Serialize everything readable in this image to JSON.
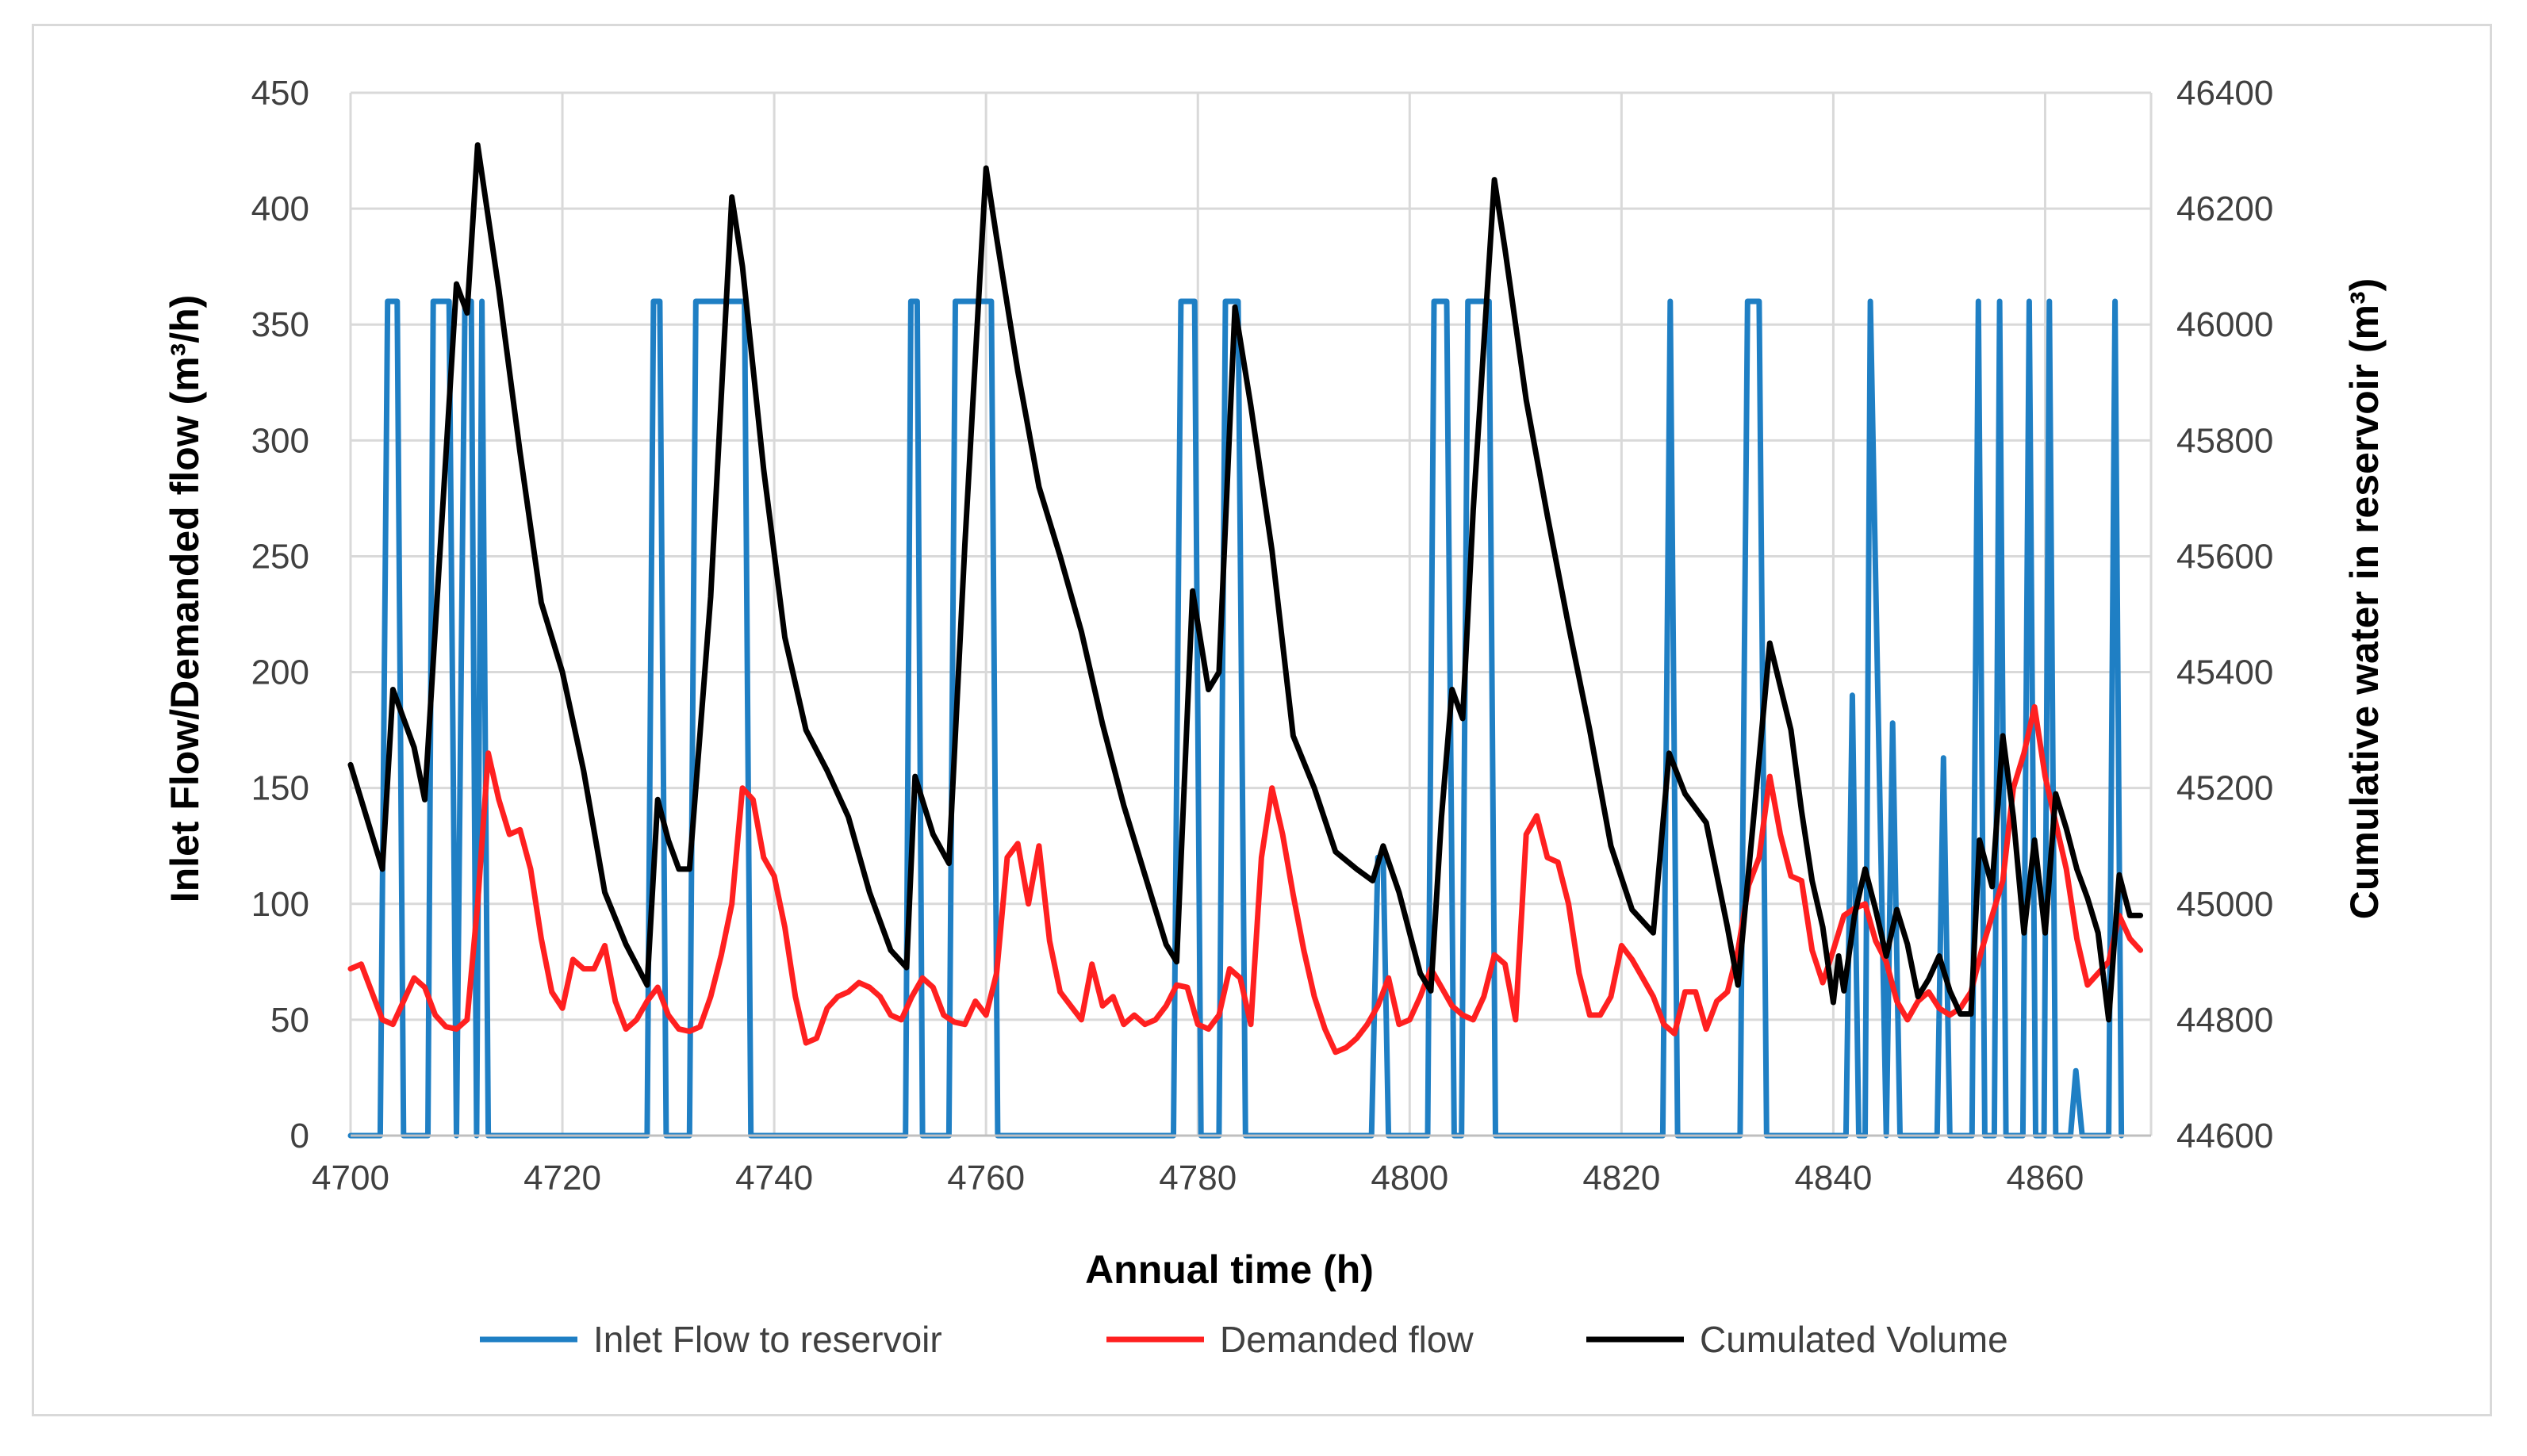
{
  "chart_data": {
    "type": "line",
    "title": "",
    "xlabel": "Annual time (h)",
    "ylabel_left": "Inlet Flow/Demanded flow (m³/h)",
    "ylabel_right": "Cumulative water in    reservoir (m³)",
    "xlim": [
      4700,
      4870
    ],
    "ylim_left": [
      0,
      450
    ],
    "ylim_right": [
      44600,
      46400
    ],
    "x_ticks": [
      "4700",
      "4720",
      "4740",
      "4760",
      "4780",
      "4800",
      "4820",
      "4840",
      "4860"
    ],
    "y_left_ticks": [
      "0",
      "50",
      "100",
      "150",
      "200",
      "250",
      "300",
      "350",
      "400",
      "450"
    ],
    "y_right_ticks": [
      "44600",
      "44800",
      "45000",
      "45200",
      "45400",
      "45600",
      "45800",
      "46000",
      "46200",
      "46400"
    ],
    "grid": true,
    "legend_position": "bottom",
    "series": [
      {
        "name": "Inlet Flow to reservoir",
        "axis": "left",
        "color": "#1f7fc4",
        "x": [
          4700,
          4702.8,
          4703.5,
          4704.4,
          4705,
          4707.3,
          4707.8,
          4709.3,
          4710,
          4710.8,
          4711.4,
          4711.9,
          4712.4,
          4713,
          4728,
          4728.6,
          4729.2,
          4729.8,
          4732,
          4732.6,
          4733.3,
          4736.5,
          4737.2,
          4737.8,
          4752.4,
          4752.9,
          4753.5,
          4754,
          4756.5,
          4757.1,
          4759.8,
          4760.5,
          4761.1,
          4777.7,
          4778.4,
          4779.7,
          4780.3,
          4782,
          4782.6,
          4783.8,
          4784.5,
          4796.4,
          4797,
          4797.5,
          4798,
          4801.7,
          4802.3,
          4803.5,
          4804.2,
          4804.9,
          4805.5,
          4806.2,
          4807.5,
          4808.1,
          4823.9,
          4824.6,
          4825.3,
          4831.2,
          4831.9,
          4833,
          4833.7,
          4841.2,
          4841.8,
          4842.4,
          4843,
          4843.5,
          4845,
          4845.6,
          4846.3,
          4849.8,
          4850.4,
          4851,
          4853.1,
          4853.7,
          4854.3,
          4855.2,
          4855.7,
          4856.3,
          4857.9,
          4858.5,
          4859.1,
          4859.9,
          4860.4,
          4861,
          4862.4,
          4862.9,
          4863.5,
          4866,
          4866.6,
          4867.2
        ],
        "values": [
          0,
          0,
          360,
          360,
          0,
          0,
          360,
          360,
          0,
          360,
          360,
          0,
          360,
          0,
          0,
          360,
          360,
          0,
          0,
          360,
          360,
          360,
          360,
          0,
          0,
          360,
          360,
          0,
          0,
          360,
          360,
          360,
          0,
          0,
          360,
          360,
          0,
          0,
          360,
          360,
          0,
          0,
          120,
          120,
          0,
          0,
          360,
          360,
          0,
          0,
          360,
          360,
          360,
          0,
          0,
          360,
          0,
          0,
          360,
          360,
          0,
          0,
          190,
          0,
          0,
          360,
          0,
          178,
          0,
          0,
          163,
          0,
          0,
          360,
          0,
          0,
          360,
          0,
          0,
          360,
          0,
          0,
          360,
          0,
          0,
          28,
          0,
          0,
          360,
          0
        ]
      },
      {
        "name": "Demanded flow",
        "axis": "left",
        "color": "#ff2020",
        "x": [
          4700,
          4701,
          4702,
          4703,
          4704,
          4705,
          4706,
          4707,
          4708,
          4709,
          4710,
          4711,
          4712,
          4713,
          4714,
          4715,
          4716,
          4717,
          4718,
          4719,
          4720,
          4721,
          4722,
          4723,
          4724,
          4725,
          4726,
          4727,
          4728,
          4729,
          4730,
          4731,
          4732,
          4733,
          4734,
          4735,
          4736,
          4737,
          4738,
          4739,
          4740,
          4741,
          4742,
          4743,
          4744,
          4745,
          4746,
          4747,
          4748,
          4749,
          4750,
          4751,
          4752,
          4753,
          4754,
          4755,
          4756,
          4757,
          4758,
          4759,
          4760,
          4761,
          4762,
          4763,
          4764,
          4765,
          4766,
          4767,
          4768,
          4769,
          4770,
          4771,
          4772,
          4773,
          4774,
          4775,
          4776,
          4777,
          4778,
          4779,
          4780,
          4781,
          4782,
          4783,
          4784,
          4785,
          4786,
          4787,
          4788,
          4789,
          4790,
          4791,
          4792,
          4793,
          4794,
          4795,
          4796,
          4797,
          4798,
          4799,
          4800,
          4801,
          4802,
          4803,
          4804,
          4805,
          4806,
          4807,
          4808,
          4809,
          4810,
          4811,
          4812,
          4813,
          4814,
          4815,
          4816,
          4817,
          4818,
          4819,
          4820,
          4821,
          4822,
          4823,
          4824,
          4825,
          4826,
          4827,
          4828,
          4829,
          4830,
          4831,
          4832,
          4833,
          4834,
          4835,
          4836,
          4837,
          4838,
          4839,
          4840,
          4841,
          4842,
          4843,
          4844,
          4845,
          4846,
          4847,
          4848,
          4849,
          4850,
          4851,
          4852,
          4853,
          4854,
          4855,
          4856,
          4857,
          4858,
          4859,
          4860,
          4861,
          4862,
          4863,
          4864,
          4865,
          4866,
          4867,
          4868,
          4869
        ],
        "values": [
          72,
          74,
          62,
          50,
          48,
          58,
          68,
          64,
          52,
          47,
          46,
          50,
          100,
          165,
          145,
          130,
          132,
          115,
          85,
          62,
          55,
          76,
          72,
          72,
          82,
          58,
          46,
          50,
          58,
          64,
          52,
          46,
          45,
          47,
          60,
          78,
          100,
          150,
          145,
          120,
          112,
          90,
          60,
          40,
          42,
          55,
          60,
          62,
          66,
          64,
          60,
          52,
          50,
          60,
          68,
          64,
          52,
          49,
          48,
          58,
          52,
          70,
          120,
          126,
          100,
          125,
          84,
          62,
          56,
          50,
          74,
          56,
          60,
          48,
          52,
          48,
          50,
          56,
          65,
          64,
          48,
          46,
          52,
          72,
          68,
          48,
          120,
          150,
          130,
          104,
          80,
          60,
          46,
          36,
          38,
          42,
          48,
          56,
          68,
          48,
          50,
          60,
          72,
          64,
          56,
          52,
          50,
          60,
          78,
          74,
          50,
          130,
          138,
          120,
          118,
          100,
          70,
          52,
          52,
          60,
          82,
          76,
          68,
          60,
          48,
          44,
          62,
          62,
          46,
          58,
          62,
          80,
          108,
          120,
          155,
          130,
          112,
          110,
          80,
          66,
          80,
          95,
          98,
          100,
          84,
          75,
          58,
          50,
          58,
          62,
          55,
          52,
          55,
          62,
          80,
          95,
          110,
          150,
          165,
          185,
          155,
          135,
          115,
          85,
          65,
          70,
          75,
          95,
          85,
          80
        ]
      },
      {
        "name": "Cumulated Volume",
        "axis": "right",
        "color": "#000000",
        "x": [
          4700,
          4703,
          4704,
          4706,
          4707,
          4710,
          4711,
          4712,
          4714,
          4716,
          4718,
          4720,
          4722,
          4724,
          4726,
          4728,
          4729,
          4730,
          4731,
          4732,
          4734,
          4736,
          4737,
          4739,
          4741,
          4743,
          4745,
          4747,
          4749,
          4751,
          4752.5,
          4753.3,
          4755,
          4756.5,
          4758,
          4760,
          4761,
          4763,
          4765,
          4767,
          4769,
          4771,
          4773,
          4775,
          4777,
          4778,
          4779.5,
          4781,
          4782,
          4783.5,
          4785,
          4787,
          4789,
          4791,
          4793,
          4795,
          4796.5,
          4797.5,
          4799,
          4801,
          4802,
          4803,
          4804,
          4805,
          4806,
          4808,
          4809,
          4811,
          4813,
          4815,
          4817,
          4819,
          4821,
          4823,
          4824.5,
          4826,
          4828,
          4830,
          4831,
          4833,
          4834,
          4836,
          4837,
          4838,
          4839,
          4840,
          4840.5,
          4841,
          4842,
          4843,
          4844,
          4845,
          4846,
          4847,
          4848,
          4849,
          4850,
          4851,
          4852,
          4853,
          4853.8,
          4855,
          4856,
          4857,
          4858,
          4859,
          4860,
          4861,
          4862,
          4863,
          4864,
          4865,
          4866,
          4867,
          4868,
          4869
        ],
        "values": [
          45240,
          45060,
          45370,
          45270,
          45180,
          46070,
          46020,
          46310,
          46060,
          45780,
          45520,
          45400,
          45230,
          45020,
          44930,
          44860,
          45180,
          45110,
          45060,
          45060,
          45530,
          46220,
          46100,
          45750,
          45460,
          45300,
          45230,
          45150,
          45020,
          44920,
          44890,
          45220,
          45120,
          45070,
          45620,
          46270,
          46150,
          45920,
          45720,
          45600,
          45470,
          45310,
          45170,
          45050,
          44930,
          44900,
          45540,
          45370,
          45400,
          46030,
          45860,
          45610,
          45290,
          45200,
          45090,
          45060,
          45040,
          45100,
          45020,
          44880,
          44850,
          45150,
          45370,
          45320,
          45680,
          46250,
          46130,
          45870,
          45670,
          45480,
          45300,
          45100,
          44990,
          44950,
          45260,
          45190,
          45140,
          44960,
          44860,
          45250,
          45450,
          45300,
          45160,
          45040,
          44960,
          44830,
          44910,
          44850,
          44980,
          45060,
          44990,
          44910,
          44990,
          44930,
          44840,
          44870,
          44910,
          44850,
          44810,
          44810,
          45110,
          45030,
          45290,
          45150,
          44950,
          45110,
          44950,
          45190,
          45130,
          45060,
          45010,
          44950,
          44800,
          45050,
          44980,
          44980
        ]
      }
    ]
  }
}
